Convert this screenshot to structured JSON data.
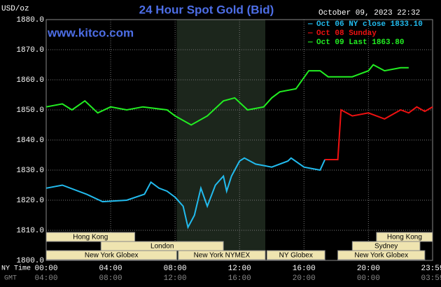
{
  "chart_data": {
    "type": "line",
    "title": "24 Hour Spot Gold (Bid)",
    "unit_label": "USD/oz",
    "timestamp": "October 09, 2023 22:32",
    "website": "www.kitco.com",
    "x_axis_label": "NY Time",
    "x2_axis_label": "GMT",
    "xlim": [
      0,
      23.983
    ],
    "xticks": [
      {
        "value": 0,
        "label": "00:00"
      },
      {
        "value": 4,
        "label": "04:00"
      },
      {
        "value": 8,
        "label": "08:00"
      },
      {
        "value": 12,
        "label": "12:00"
      },
      {
        "value": 16,
        "label": "16:00"
      },
      {
        "value": 20,
        "label": "20:00"
      },
      {
        "value": 23.983,
        "label": "23:59"
      }
    ],
    "x2tick_labels": [
      "04:00",
      "08:00",
      "12:00",
      "16:00",
      "20:00",
      "00:00",
      "03:59"
    ],
    "ylim": [
      1800,
      1880
    ],
    "yticks": [
      {
        "value": 1800,
        "label": "1800.0"
      },
      {
        "value": 1810,
        "label": "1810.0"
      },
      {
        "value": 1820,
        "label": "1820.0"
      },
      {
        "value": 1830,
        "label": "1830.0"
      },
      {
        "value": 1840,
        "label": "1840.0"
      },
      {
        "value": 1850,
        "label": "1850.0"
      },
      {
        "value": 1860,
        "label": "1860.0"
      },
      {
        "value": 1870,
        "label": "1870.0"
      },
      {
        "value": 1880,
        "label": "1880.0"
      }
    ],
    "grid": true,
    "sessions": [
      "Hong Kong",
      "Hong Kong",
      "London",
      "Sydney",
      "New York Globex",
      "New York NYMEX",
      "NY Globex",
      "New York Globex"
    ],
    "series": [
      {
        "name": "Oct 06 NY close 1833.10",
        "color": "#22bbee",
        "x": [
          0,
          1,
          2.5,
          3.5,
          5,
          6.1,
          6.5,
          7,
          7.5,
          8,
          8.5,
          8.8,
          9.2,
          9.6,
          10,
          10.5,
          11,
          11.2,
          11.5,
          12,
          12.3,
          13,
          14,
          15,
          15.2,
          16,
          17,
          17.3
        ],
        "values": [
          1824,
          1825,
          1822,
          1819.5,
          1820,
          1822,
          1826,
          1824,
          1823,
          1821,
          1818,
          1811,
          1815,
          1824,
          1818,
          1825,
          1828,
          1823,
          1828,
          1833,
          1834,
          1832,
          1831,
          1833,
          1834,
          1831,
          1830,
          1833.5
        ]
      },
      {
        "name": "Oct 08 Sunday",
        "color": "#ee1111",
        "x": [
          17.3,
          18.1,
          18.3,
          19,
          20,
          21,
          22,
          22.5,
          23,
          23.5,
          23.983
        ],
        "values": [
          1833.5,
          1833.5,
          1850,
          1848,
          1849,
          1847,
          1850,
          1849,
          1851,
          1849.5,
          1851
        ]
      },
      {
        "name": "Oct 09 Last 1863.80",
        "color": "#22ee22",
        "x": [
          0,
          1,
          1.6,
          2.4,
          3.2,
          4,
          5,
          6,
          7.5,
          8,
          9,
          10,
          11,
          11.7,
          12.5,
          13.5,
          14,
          14.5,
          15.5,
          16.3,
          17,
          17.5,
          19,
          20,
          20.3,
          21,
          22,
          22.5
        ],
        "values": [
          1851,
          1852,
          1850,
          1853,
          1849,
          1851,
          1850,
          1851,
          1850,
          1848,
          1845,
          1848,
          1853,
          1854,
          1850,
          1851,
          1854,
          1856,
          1857,
          1863,
          1863,
          1861,
          1861,
          1863,
          1865,
          1863,
          1864,
          1864
        ]
      }
    ]
  }
}
